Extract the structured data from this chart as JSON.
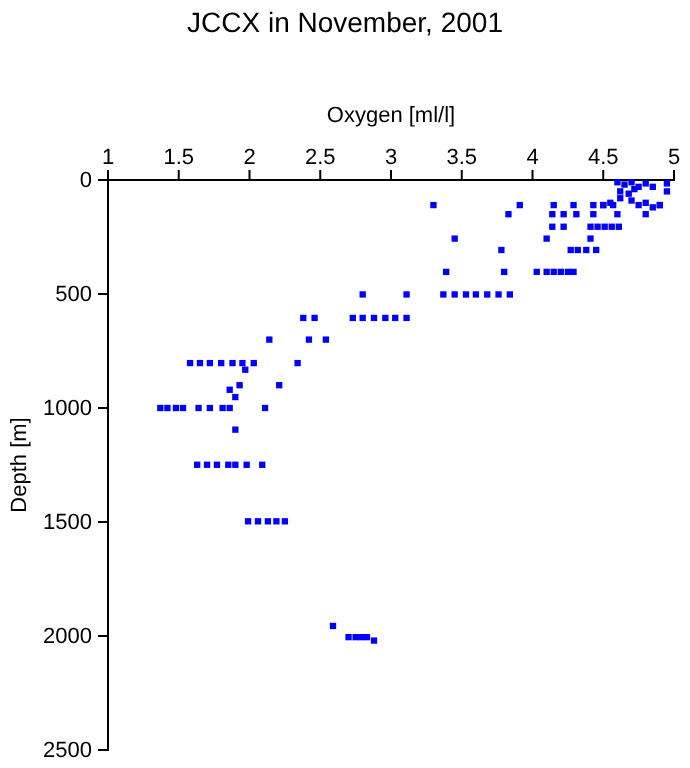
{
  "chart_data": {
    "type": "scatter",
    "title": "JCCX in November, 2001",
    "xlabel": "Oxygen [ml/l]",
    "ylabel": "Depth [m]",
    "xlim": [
      1,
      5
    ],
    "xticks": [
      1,
      1.5,
      2,
      2.5,
      3,
      3.5,
      4,
      4.5,
      5
    ],
    "ylim": [
      2500,
      0
    ],
    "yticks": [
      0,
      500,
      1000,
      1500,
      2000,
      2500
    ],
    "marker": "square",
    "grid": false,
    "series": [
      {
        "color": "#0000ff",
        "x": [
          4.6,
          4.65,
          4.7,
          4.75,
          4.8,
          4.62,
          4.68,
          4.72,
          4.85,
          4.95,
          4.95,
          4.62,
          4.7,
          4.8,
          4.75,
          4.85,
          4.9,
          4.55,
          4.5,
          3.3,
          3.91,
          4.15,
          4.29,
          4.43,
          4.5,
          4.57,
          4.9,
          3.83,
          4.14,
          4.22,
          4.31,
          4.43,
          4.6,
          4.8,
          4.14,
          4.22,
          4.41,
          4.46,
          4.51,
          4.56,
          4.61,
          3.45,
          4.1,
          4.41,
          3.78,
          4.27,
          4.32,
          4.38,
          4.45,
          3.39,
          3.8,
          4.03,
          4.1,
          4.15,
          4.2,
          4.25,
          4.29,
          2.8,
          3.11,
          3.37,
          3.45,
          3.53,
          3.6,
          3.68,
          3.76,
          3.84,
          2.38,
          2.46,
          2.73,
          2.8,
          2.88,
          2.96,
          3.03,
          3.11,
          2.14,
          2.42,
          2.54,
          1.58,
          1.65,
          1.72,
          1.8,
          1.88,
          1.95,
          2.03,
          2.34,
          1.97,
          2.21,
          1.93,
          1.86,
          1.9,
          1.37,
          1.42,
          1.48,
          1.53,
          1.64,
          1.72,
          1.81,
          1.86,
          2.11,
          1.9,
          1.63,
          1.7,
          1.77,
          1.85,
          1.9,
          1.98,
          2.09,
          1.99,
          2.06,
          2.13,
          2.19,
          2.25,
          2.59,
          2.7,
          2.75,
          2.79,
          2.83,
          2.88
        ],
        "values": [
          10,
          20,
          10,
          30,
          15,
          50,
          60,
          40,
          30,
          15,
          50,
          80,
          90,
          100,
          110,
          120,
          110,
          100,
          110,
          110,
          110,
          110,
          110,
          110,
          110,
          110,
          110,
          150,
          150,
          150,
          150,
          150,
          150,
          150,
          205,
          205,
          205,
          205,
          205,
          205,
          205,
          257,
          257,
          257,
          307,
          307,
          307,
          307,
          307,
          403,
          403,
          403,
          403,
          403,
          403,
          403,
          403,
          502,
          502,
          502,
          502,
          502,
          502,
          502,
          502,
          502,
          605,
          605,
          605,
          605,
          605,
          605,
          605,
          605,
          700,
          700,
          700,
          803,
          803,
          803,
          803,
          803,
          803,
          803,
          803,
          832,
          900,
          900,
          920,
          952,
          1000,
          1000,
          1000,
          1000,
          1000,
          1000,
          1000,
          1000,
          1000,
          1095,
          1249,
          1249,
          1249,
          1249,
          1249,
          1249,
          1249,
          1497,
          1497,
          1497,
          1497,
          1497,
          1956,
          2005,
          2005,
          2005,
          2005,
          2020
        ]
      }
    ]
  }
}
